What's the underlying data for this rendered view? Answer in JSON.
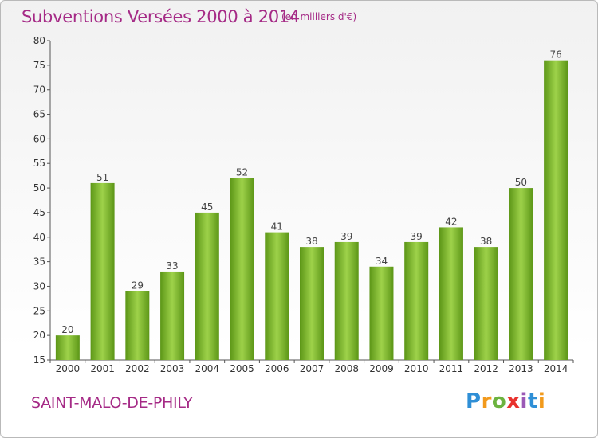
{
  "header": {
    "title": "Subventions Versées 2000 à 2014",
    "subtitle": "(en milliers d'€)"
  },
  "footer": {
    "commune": "SAINT-MALO-DE-PHILY",
    "brand": "Proxiti",
    "brand_colors": [
      "#2f8fd6",
      "#f29a1c",
      "#6cb33f",
      "#e8322e",
      "#9b59b6",
      "#2f8fd6",
      "#f29a1c"
    ]
  },
  "colors": {
    "bar": "#78b52a",
    "bar_light": "#9ed24a",
    "bar_dark": "#5c9617",
    "text_accent": "#a52a86",
    "grid": "#dcdcdc"
  },
  "chart_data": {
    "type": "bar",
    "title": "Subventions Versées 2000 à 2014",
    "subtitle": "(en milliers d'€)",
    "xlabel": "",
    "ylabel": "",
    "categories": [
      "2000",
      "2001",
      "2002",
      "2003",
      "2004",
      "2005",
      "2006",
      "2007",
      "2008",
      "2009",
      "2010",
      "2011",
      "2012",
      "2013",
      "2014"
    ],
    "values": [
      20,
      51,
      29,
      33,
      45,
      52,
      41,
      38,
      39,
      34,
      39,
      42,
      38,
      50,
      76
    ],
    "ylim": [
      15,
      80
    ],
    "yticks": [
      15,
      20,
      25,
      30,
      35,
      40,
      45,
      50,
      55,
      60,
      65,
      70,
      75,
      80
    ],
    "grid": false,
    "data_labels": true
  }
}
